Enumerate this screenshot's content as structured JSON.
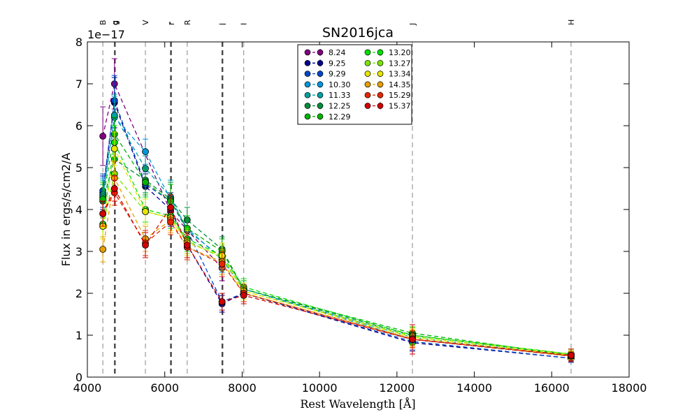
{
  "chart_data": {
    "type": "line",
    "title": "SN2016jca",
    "xlabel": "Rest Wavelength [Å]",
    "ylabel": "Flux in ergs/s/cm2/A",
    "y_offset_label": "1e−17",
    "xlim": [
      4000,
      18000
    ],
    "ylim": [
      0,
      8
    ],
    "xticks": [
      4000,
      6000,
      8000,
      10000,
      12000,
      14000,
      16000,
      18000
    ],
    "yticks": [
      0,
      1,
      2,
      3,
      4,
      5,
      6,
      7,
      8
    ],
    "bands": [
      {
        "label": "B",
        "x": 4400,
        "dark": false
      },
      {
        "label": "g",
        "x": 4700,
        "dark": true
      },
      {
        "label": "g",
        "x": 4720,
        "dark": true
      },
      {
        "label": "V",
        "x": 5500,
        "dark": false
      },
      {
        "label": "r",
        "x": 6150,
        "dark": true
      },
      {
        "label": "r",
        "x": 6170,
        "dark": true
      },
      {
        "label": "R",
        "x": 6580,
        "dark": false
      },
      {
        "label": "i",
        "x": 7480,
        "dark": true
      },
      {
        "label": "i",
        "x": 7500,
        "dark": true
      },
      {
        "label": "I",
        "x": 8040,
        "dark": false
      },
      {
        "label": "J",
        "x": 12400,
        "dark": false
      },
      {
        "label": "H",
        "x": 16500,
        "dark": false
      }
    ],
    "legend_position": "upper-center",
    "series": [
      {
        "name": "8.24",
        "color": "#800080",
        "points": [
          [
            4400,
            5.75,
            0.7
          ],
          [
            4700,
            7.0,
            0.6
          ],
          [
            6150,
            3.95,
            0.4
          ],
          [
            7480,
            2.6,
            0.3
          ]
        ]
      },
      {
        "name": "9.25",
        "color": "#00008b",
        "points": [
          [
            4400,
            4.4,
            0.4
          ],
          [
            4700,
            6.55,
            0.6
          ],
          [
            5500,
            4.55,
            0.3
          ],
          [
            6150,
            4.0,
            0.4
          ],
          [
            6580,
            3.15,
            0.3
          ],
          [
            7480,
            1.75,
            0.2
          ],
          [
            8040,
            2.0,
            0.2
          ],
          [
            12400,
            0.82,
            0.2
          ],
          [
            16500,
            0.45,
            0.1
          ]
        ]
      },
      {
        "name": "9.29",
        "color": "#0047c8",
        "points": [
          [
            4400,
            4.45,
            0.4
          ],
          [
            4700,
            6.6,
            0.6
          ],
          [
            5500,
            4.6,
            0.3
          ],
          [
            6150,
            4.2,
            0.4
          ],
          [
            6580,
            3.5,
            0.3
          ],
          [
            7480,
            1.8,
            0.2
          ],
          [
            8040,
            2.0,
            0.2
          ],
          [
            12400,
            0.85,
            0.2
          ],
          [
            16500,
            0.45,
            0.1
          ]
        ]
      },
      {
        "name": "10.30",
        "color": "#0096dc",
        "points": [
          [
            4400,
            4.35,
            0.4
          ],
          [
            4700,
            6.2,
            0.5
          ],
          [
            5500,
            5.38,
            0.3
          ],
          [
            6150,
            4.25,
            0.4
          ],
          [
            6580,
            3.55,
            0.3
          ],
          [
            7480,
            2.8,
            0.3
          ],
          [
            8040,
            2.1,
            0.2
          ],
          [
            12400,
            0.9,
            0.2
          ],
          [
            16500,
            0.5,
            0.1
          ]
        ]
      },
      {
        "name": "11.33",
        "color": "#00a0a0",
        "points": [
          [
            4400,
            4.3,
            0.4
          ],
          [
            4700,
            6.25,
            0.5
          ],
          [
            5500,
            4.98,
            0.3
          ],
          [
            6150,
            4.3,
            0.4
          ],
          [
            6580,
            3.5,
            0.3
          ],
          [
            7480,
            2.85,
            0.3
          ],
          [
            8040,
            2.1,
            0.2
          ],
          [
            12400,
            0.95,
            0.2
          ],
          [
            16500,
            0.5,
            0.1
          ]
        ]
      },
      {
        "name": "12.25",
        "color": "#008c3c",
        "points": [
          [
            4400,
            4.2,
            0.4
          ],
          [
            4700,
            5.2,
            0.4
          ],
          [
            5500,
            4.7,
            0.3
          ],
          [
            6150,
            4.25,
            0.4
          ],
          [
            6580,
            3.75,
            0.3
          ],
          [
            7480,
            3.05,
            0.3
          ],
          [
            8040,
            2.1,
            0.2
          ],
          [
            12400,
            1.0,
            0.2
          ],
          [
            16500,
            0.52,
            0.1
          ]
        ]
      },
      {
        "name": "12.29",
        "color": "#00b400",
        "points": [
          [
            4400,
            4.25,
            0.4
          ],
          [
            4700,
            5.8,
            0.4
          ],
          [
            5500,
            4.65,
            0.3
          ],
          [
            6150,
            4.2,
            0.4
          ],
          [
            6580,
            3.55,
            0.3
          ],
          [
            7480,
            3.0,
            0.3
          ],
          [
            8040,
            2.1,
            0.2
          ],
          [
            12400,
            1.05,
            0.2
          ],
          [
            16500,
            0.52,
            0.1
          ]
        ]
      },
      {
        "name": "13.20",
        "color": "#00e000",
        "points": [
          [
            4400,
            3.65,
            0.3
          ],
          [
            4700,
            5.6,
            0.4
          ],
          [
            5500,
            4.0,
            0.3
          ],
          [
            6150,
            3.85,
            0.3
          ],
          [
            6580,
            3.3,
            0.3
          ],
          [
            7480,
            2.9,
            0.3
          ],
          [
            8040,
            2.15,
            0.2
          ],
          [
            12400,
            1.0,
            0.2
          ],
          [
            16500,
            0.55,
            0.1
          ]
        ]
      },
      {
        "name": "13.27",
        "color": "#78e600",
        "points": [
          [
            4400,
            3.6,
            0.3
          ],
          [
            4700,
            4.85,
            0.4
          ],
          [
            5500,
            3.95,
            0.3
          ],
          [
            6150,
            3.8,
            0.3
          ],
          [
            6580,
            3.25,
            0.3
          ],
          [
            7480,
            2.85,
            0.3
          ],
          [
            8040,
            2.05,
            0.2
          ],
          [
            12400,
            0.98,
            0.2
          ],
          [
            16500,
            0.55,
            0.1
          ]
        ]
      },
      {
        "name": "13.34",
        "color": "#e6e600",
        "points": [
          [
            4400,
            3.6,
            0.3
          ],
          [
            4700,
            5.45,
            0.4
          ],
          [
            5500,
            3.95,
            0.3
          ],
          [
            6150,
            3.8,
            0.3
          ],
          [
            6580,
            3.2,
            0.3
          ],
          [
            7480,
            2.9,
            0.3
          ],
          [
            8040,
            2.05,
            0.2
          ],
          [
            12400,
            0.95,
            0.2
          ],
          [
            16500,
            0.52,
            0.1
          ]
        ]
      },
      {
        "name": "14.35",
        "color": "#e6a000",
        "points": [
          [
            4400,
            3.05,
            0.3
          ],
          [
            4700,
            4.75,
            0.4
          ],
          [
            5500,
            3.3,
            0.3
          ],
          [
            6150,
            3.75,
            0.3
          ],
          [
            6580,
            3.1,
            0.3
          ],
          [
            7480,
            2.75,
            0.3
          ],
          [
            8040,
            2.0,
            0.2
          ],
          [
            12400,
            0.92,
            0.2
          ],
          [
            16500,
            0.5,
            0.1
          ]
        ]
      },
      {
        "name": "15.29",
        "color": "#e62800",
        "points": [
          [
            4400,
            3.9,
            0.3
          ],
          [
            4700,
            4.4,
            0.3
          ],
          [
            5500,
            3.2,
            0.3
          ],
          [
            6150,
            3.7,
            0.3
          ],
          [
            6580,
            3.1,
            0.3
          ],
          [
            7480,
            2.7,
            0.3
          ],
          [
            8040,
            2.0,
            0.2
          ],
          [
            12400,
            0.9,
            0.2
          ],
          [
            16500,
            0.5,
            0.1
          ]
        ]
      },
      {
        "name": "15.37",
        "color": "#d20000",
        "points": [
          [
            4400,
            3.9,
            0.3
          ],
          [
            4700,
            4.5,
            0.3
          ],
          [
            5500,
            3.15,
            0.3
          ],
          [
            6150,
            4.05,
            0.3
          ],
          [
            6580,
            3.15,
            0.3
          ],
          [
            7480,
            1.8,
            0.2
          ],
          [
            8040,
            1.95,
            0.2
          ],
          [
            12400,
            0.9,
            0.35
          ],
          [
            16500,
            0.52,
            0.15
          ]
        ]
      }
    ]
  }
}
